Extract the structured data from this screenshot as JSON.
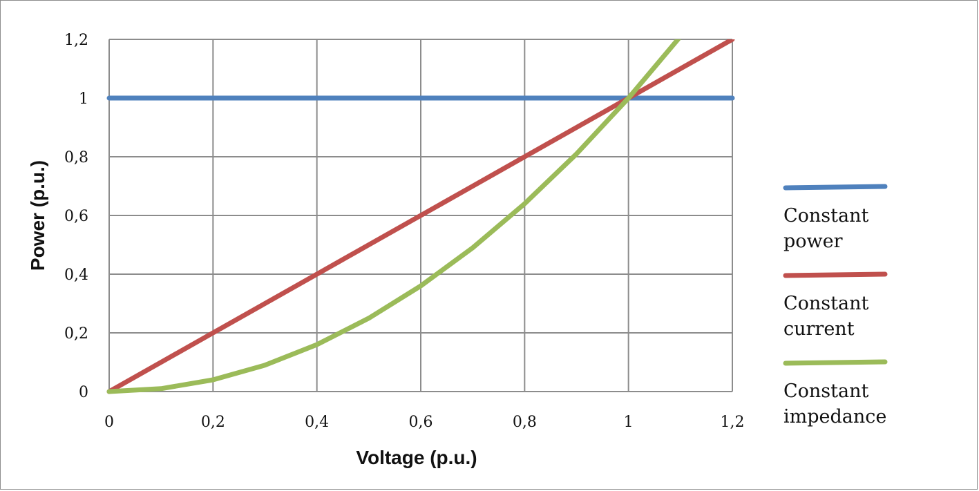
{
  "chart_data": {
    "type": "line",
    "title": "",
    "xlabel": "Voltage (p.u.)",
    "ylabel": "Power (p.u.)",
    "xlim": [
      0,
      1.2
    ],
    "ylim": [
      0,
      1.2
    ],
    "x_ticks": [
      "0",
      "0,2",
      "0,4",
      "0,6",
      "0,8",
      "1",
      "1,2"
    ],
    "y_ticks": [
      "0",
      "0,2",
      "0,4",
      "0,6",
      "0,8",
      "1",
      "1,2"
    ],
    "grid": true,
    "legend_position": "right",
    "series": [
      {
        "name": "Constant power",
        "color": "#4f81bd",
        "x": [
          0,
          0.1,
          0.2,
          0.3,
          0.4,
          0.5,
          0.6,
          0.7,
          0.8,
          0.9,
          1.0,
          1.1,
          1.2
        ],
        "y": [
          1,
          1,
          1,
          1,
          1,
          1,
          1,
          1,
          1,
          1,
          1,
          1,
          1
        ]
      },
      {
        "name": "Constant current",
        "color": "#c0504d",
        "x": [
          0,
          0.1,
          0.2,
          0.3,
          0.4,
          0.5,
          0.6,
          0.7,
          0.8,
          0.9,
          1.0,
          1.1,
          1.2
        ],
        "y": [
          0,
          0.1,
          0.2,
          0.3,
          0.4,
          0.5,
          0.6,
          0.7,
          0.8,
          0.9,
          1.0,
          1.1,
          1.2
        ]
      },
      {
        "name": "Constant impedance",
        "color": "#9bbb59",
        "x": [
          0,
          0.1,
          0.2,
          0.3,
          0.4,
          0.5,
          0.6,
          0.7,
          0.8,
          0.9,
          1.0,
          1.1
        ],
        "y": [
          0,
          0.01,
          0.04,
          0.09,
          0.16,
          0.25,
          0.36,
          0.49,
          0.64,
          0.81,
          1.0,
          1.21
        ]
      }
    ]
  }
}
